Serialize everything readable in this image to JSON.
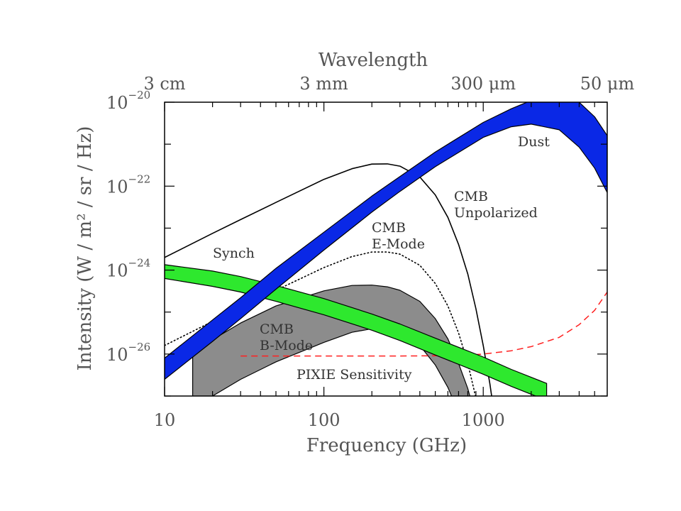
{
  "chart_data": {
    "type": "line",
    "scale": {
      "x": "log",
      "y": "log"
    },
    "xlim": [
      10,
      6000
    ],
    "ylim": [
      1e-27,
      1e-20
    ],
    "xlabel": "Frequency (GHz)",
    "ylabel": "Intensity (W / m² / sr / Hz)",
    "top_axis": {
      "title": "Wavelength",
      "ticks": [
        {
          "freq": 10,
          "label": "3 cm"
        },
        {
          "freq": 100,
          "label": "3 mm"
        },
        {
          "freq": 1000,
          "label": "300 μm"
        },
        {
          "freq": 6000,
          "label": "50 μm"
        }
      ]
    },
    "x_ticks": [
      {
        "value": 10,
        "label": "10"
      },
      {
        "value": 100,
        "label": "100"
      },
      {
        "value": 1000,
        "label": "1000"
      }
    ],
    "y_ticks": [
      {
        "value": 1e-20,
        "base": "10",
        "exp": "−20"
      },
      {
        "value": 1e-22,
        "base": "10",
        "exp": "−22"
      },
      {
        "value": 1e-24,
        "base": "10",
        "exp": "−24"
      },
      {
        "value": 1e-26,
        "base": "10",
        "exp": "−26"
      }
    ],
    "series": [
      {
        "name": "Dust",
        "label_lines": [
          "Dust"
        ],
        "style": "band",
        "color": "#0a28e6",
        "x": [
          10,
          20,
          30,
          50,
          100,
          200,
          300,
          500,
          1000,
          1500,
          2000,
          3000,
          4000,
          5000,
          6000
        ],
        "low": [
          2.5e-27,
          2e-26,
          7e-26,
          3.5e-25,
          3e-24,
          2.4e-23,
          7.5e-23,
          2.9e-22,
          1.45e-21,
          2.6e-21,
          3e-21,
          2.2e-21,
          8.5e-22,
          2.7e-22,
          7e-23
        ],
        "high": [
          8e-27,
          6.5e-26,
          2.2e-25,
          1.1e-24,
          8e-24,
          5.8e-23,
          1.7e-22,
          6.5e-22,
          3.3e-21,
          7e-21,
          1.1e-20,
          1.4e-20,
          1e-20,
          4.5e-21,
          1.6e-21
        ]
      },
      {
        "name": "Synch",
        "label_lines": [
          "Synch"
        ],
        "style": "band",
        "color": "#2ee82e",
        "x": [
          10,
          20,
          30,
          50,
          100,
          200,
          300,
          500,
          1000,
          1500,
          2000,
          2500
        ],
        "low": [
          6.3e-25,
          4.1e-25,
          3e-25,
          1.8e-25,
          8.6e-26,
          3.7e-26,
          2.1e-26,
          9.5e-27,
          3.3e-27,
          1.7e-27,
          1.1e-27,
          8e-28
        ],
        "high": [
          1.35e-24,
          9.5e-25,
          7e-25,
          4.3e-25,
          2.1e-25,
          9e-26,
          5.2e-26,
          2.4e-26,
          8.5e-27,
          4.3e-27,
          2.8e-27,
          2e-27
        ]
      },
      {
        "name": "CMB B-Mode",
        "label_lines": [
          "CMB",
          "B-Mode"
        ],
        "style": "band",
        "color": "#8c8c8c",
        "x": [
          15,
          20,
          30,
          50,
          100,
          150,
          200,
          250,
          300,
          400,
          500,
          600,
          700,
          800,
          900
        ],
        "low": [
          4e-28,
          1e-27,
          2.5e-27,
          6.5e-27,
          1.9e-26,
          3.3e-26,
          4e-26,
          3.9e-26,
          3.3e-26,
          1.6e-26,
          5.5e-27,
          1.6e-27,
          4e-28,
          1e-28,
          2e-29
        ],
        "high": [
          1.3e-26,
          2.2e-26,
          5.5e-26,
          1.4e-25,
          3.2e-25,
          4.3e-25,
          4.4e-25,
          4e-25,
          3.3e-25,
          1.8e-25,
          7e-26,
          2.3e-26,
          6e-27,
          1.5e-27,
          3e-28
        ]
      },
      {
        "name": "CMB Unpolarized",
        "label_lines": [
          "CMB",
          "Unpolarized"
        ],
        "style": "solid",
        "color": "#000000",
        "x": [
          10,
          20,
          30,
          50,
          100,
          150,
          200,
          250,
          300,
          400,
          500,
          600,
          700,
          800,
          900,
          1000,
          1100,
          1200,
          1300,
          1400
        ],
        "y": [
          2e-24,
          7.5e-24,
          1.6e-23,
          4.1e-23,
          1.45e-22,
          2.6e-22,
          3.35e-22,
          3.4e-22,
          3e-22,
          1.65e-22,
          6.2e-23,
          1.8e-23,
          4.1e-24,
          8e-25,
          1.2e-25,
          1.6e-26,
          2e-27,
          2e-28,
          2e-29,
          2e-30
        ]
      },
      {
        "name": "CMB E-Mode",
        "label_lines": [
          "CMB",
          "E-Mode"
        ],
        "style": "dotted",
        "color": "#000000",
        "x": [
          10,
          20,
          30,
          50,
          100,
          150,
          200,
          250,
          300,
          400,
          500,
          600,
          700,
          800,
          900,
          1000,
          1100
        ],
        "y": [
          1.6e-26,
          6e-26,
          1.3e-25,
          3.3e-25,
          1.15e-24,
          2.1e-24,
          2.7e-24,
          2.7e-24,
          2.4e-24,
          1.3e-24,
          4.8e-25,
          1.4e-25,
          3.2e-26,
          6e-27,
          9e-28,
          1.2e-28,
          1.5e-29
        ]
      },
      {
        "name": "PIXIE Sensitivity",
        "label_lines": [
          "PIXIE Sensitivity"
        ],
        "style": "dashed",
        "color": "#ff2020",
        "x": [
          30,
          50,
          100,
          200,
          300,
          500,
          800,
          1000,
          1500,
          2000,
          3000,
          4000,
          5000,
          6000
        ],
        "y": [
          9e-27,
          9e-27,
          9e-27,
          9e-27,
          9e-27,
          9.1e-27,
          9.5e-27,
          1e-26,
          1.2e-26,
          1.5e-26,
          2.5e-26,
          5e-26,
          1.1e-25,
          3e-25
        ]
      }
    ]
  }
}
